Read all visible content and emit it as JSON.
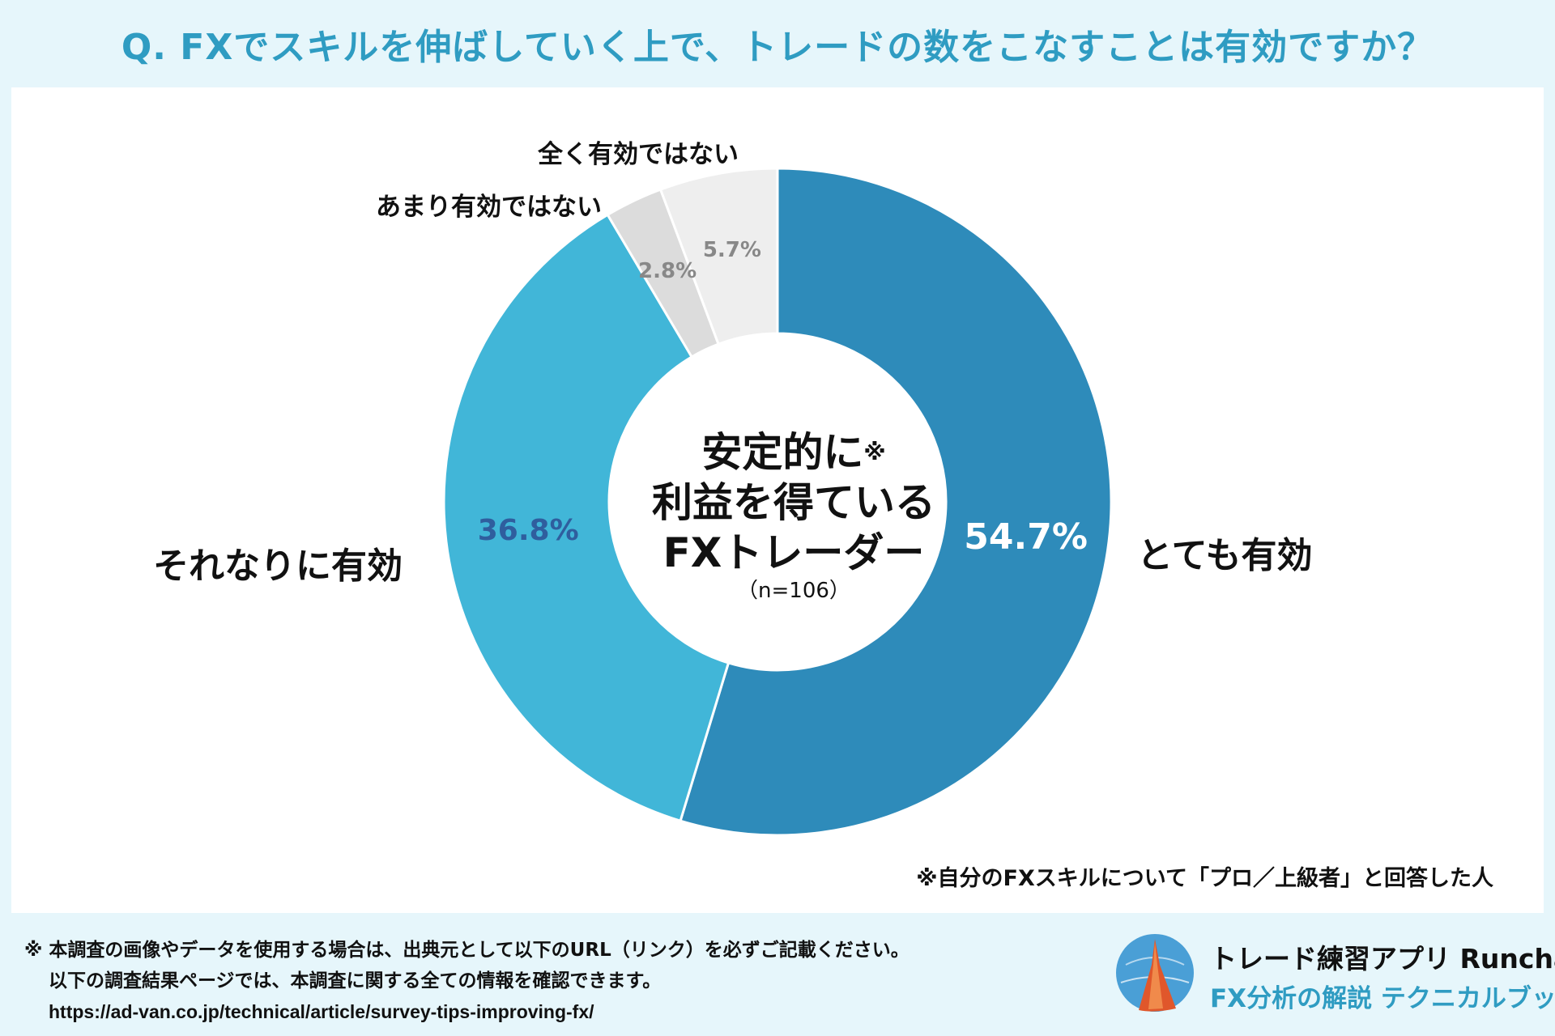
{
  "title": "Q. FXでスキルを伸ばしていく上で、トレードの数をこなすことは有効ですか？",
  "chart_data": {
    "type": "donut",
    "categories": [
      "とても有効",
      "それなりに有効",
      "あまり有効ではない",
      "全く有効ではない"
    ],
    "values": [
      54.7,
      36.8,
      2.8,
      5.7
    ],
    "value_labels": [
      "54.7%",
      "36.8%",
      "2.8%",
      "5.7%"
    ],
    "colors": [
      "#2e8bba",
      "#41b6d8",
      "#dcdcdc",
      "#eeeeee"
    ],
    "label_colors": [
      "#ffffff",
      "#2f5e9e",
      "#888888",
      "#888888"
    ],
    "center": {
      "line1": "安定的に",
      "mark": "※",
      "line2": "利益を得ている",
      "line3": "FXトレーダー",
      "n": "（n=106）"
    },
    "footnote": "※自分のFXスキルについて「プロ／上級者」と回答した人"
  },
  "footer": {
    "line1": "※ 本調査の画像やデータを使用する場合は、出典元として以下のURL（リンク）を必ずご記載ください。",
    "line2": "以下の調査結果ページでは、本調査に関する全ての情報を確認できます。",
    "url": "https://ad-van.co.jp/technical/article/survey-tips-improving-fx/"
  },
  "brand": {
    "name": "トレード練習アプリ Runcha",
    "sub": "FX分析の解説 テクニカルブック",
    "logo_icon": "runcha-logo-icon"
  }
}
